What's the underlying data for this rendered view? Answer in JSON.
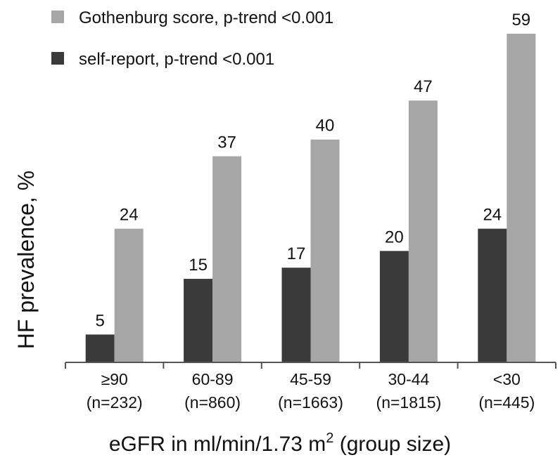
{
  "chart_data": {
    "type": "bar",
    "categories": [
      "≥90",
      "60-89",
      "45-59",
      "30-44",
      "<30"
    ],
    "category_sublabels": [
      "(n=232)",
      "(n=860)",
      "(n=1663)",
      "(n=1815)",
      "(n=445)"
    ],
    "series": [
      {
        "name": "self-report, p-trend <0.001",
        "color": "#3a3a3a",
        "values": [
          5,
          15,
          17,
          20,
          24
        ]
      },
      {
        "name": "Gothenburg score, p-trend <0.001",
        "color": "#a6a6a6",
        "values": [
          24,
          37,
          40,
          47,
          59
        ]
      }
    ],
    "legend_order": [
      1,
      0
    ],
    "legend_placement": "top-left",
    "xlabel": "eGFR in ml/min/1.73 m",
    "xlabel_superscript": "2",
    "xlabel_suffix": " (group size)",
    "ylabel": "HF prevalence, %",
    "ylim": [
      0,
      60
    ],
    "grid": false
  }
}
